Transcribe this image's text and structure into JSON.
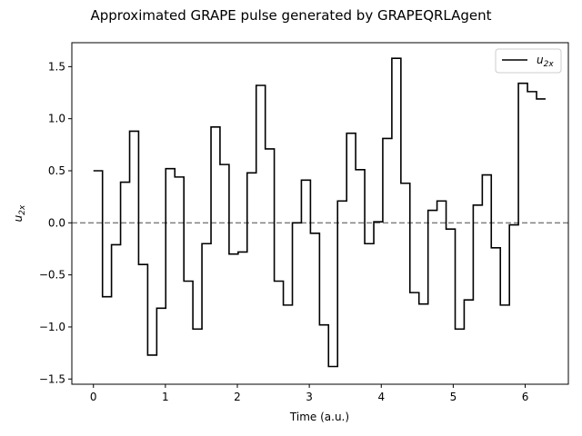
{
  "chart_data": {
    "type": "line",
    "step": "post",
    "title": "Approximated GRAPE pulse generated by GRAPEQRLAgent",
    "xlabel": "Time (a.u.)",
    "ylabel_main": "u",
    "ylabel_sub": "2x",
    "xlim": [
      -0.3,
      6.6
    ],
    "ylim": [
      -1.55,
      1.73
    ],
    "xticks": [
      0,
      1,
      2,
      3,
      4,
      5,
      6
    ],
    "yticks": [
      -1.5,
      -1.0,
      -0.5,
      0.0,
      0.5,
      1.0,
      1.5
    ],
    "xtick_labels": [
      "0",
      "1",
      "2",
      "3",
      "4",
      "5",
      "6"
    ],
    "ytick_labels": [
      "−1.5",
      "−1.0",
      "−0.5",
      "0.0",
      "0.5",
      "1.0",
      "1.5"
    ],
    "reference_line": {
      "y": 0.0,
      "style": "dashed",
      "color": "#808080"
    },
    "legend": {
      "position": "top-right",
      "entries": [
        {
          "main": "u",
          "sub": "2x"
        }
      ]
    },
    "series": [
      {
        "color": "#000000",
        "x": [
          0,
          0.126,
          0.251,
          0.377,
          0.503,
          0.628,
          0.754,
          0.88,
          1.005,
          1.131,
          1.257,
          1.382,
          1.508,
          1.634,
          1.759,
          1.885,
          2.011,
          2.136,
          2.262,
          2.388,
          2.513,
          2.639,
          2.765,
          2.89,
          3.016,
          3.142,
          3.267,
          3.393,
          3.519,
          3.644,
          3.77,
          3.896,
          4.021,
          4.147,
          4.273,
          4.398,
          4.524,
          4.65,
          4.775,
          4.901,
          5.027,
          5.152,
          5.278,
          5.404,
          5.529,
          5.655,
          5.781,
          5.906,
          6.032,
          6.158,
          6.283
        ],
        "y": [
          0.5,
          -0.71,
          -0.21,
          0.39,
          0.88,
          -0.4,
          -1.27,
          -0.82,
          0.52,
          0.44,
          -0.56,
          -1.02,
          -0.2,
          0.92,
          0.56,
          -0.3,
          -0.28,
          0.48,
          1.32,
          0.71,
          -0.56,
          -0.79,
          0.0,
          0.41,
          -0.1,
          -0.98,
          -1.38,
          0.21,
          0.86,
          0.51,
          -0.2,
          0.01,
          0.81,
          1.58,
          0.38,
          -0.67,
          -0.78,
          0.12,
          0.21,
          -0.06,
          -1.02,
          -0.74,
          0.17,
          0.46,
          -0.24,
          -0.79,
          -0.02,
          1.34,
          1.26,
          1.19,
          1.19
        ]
      }
    ]
  }
}
